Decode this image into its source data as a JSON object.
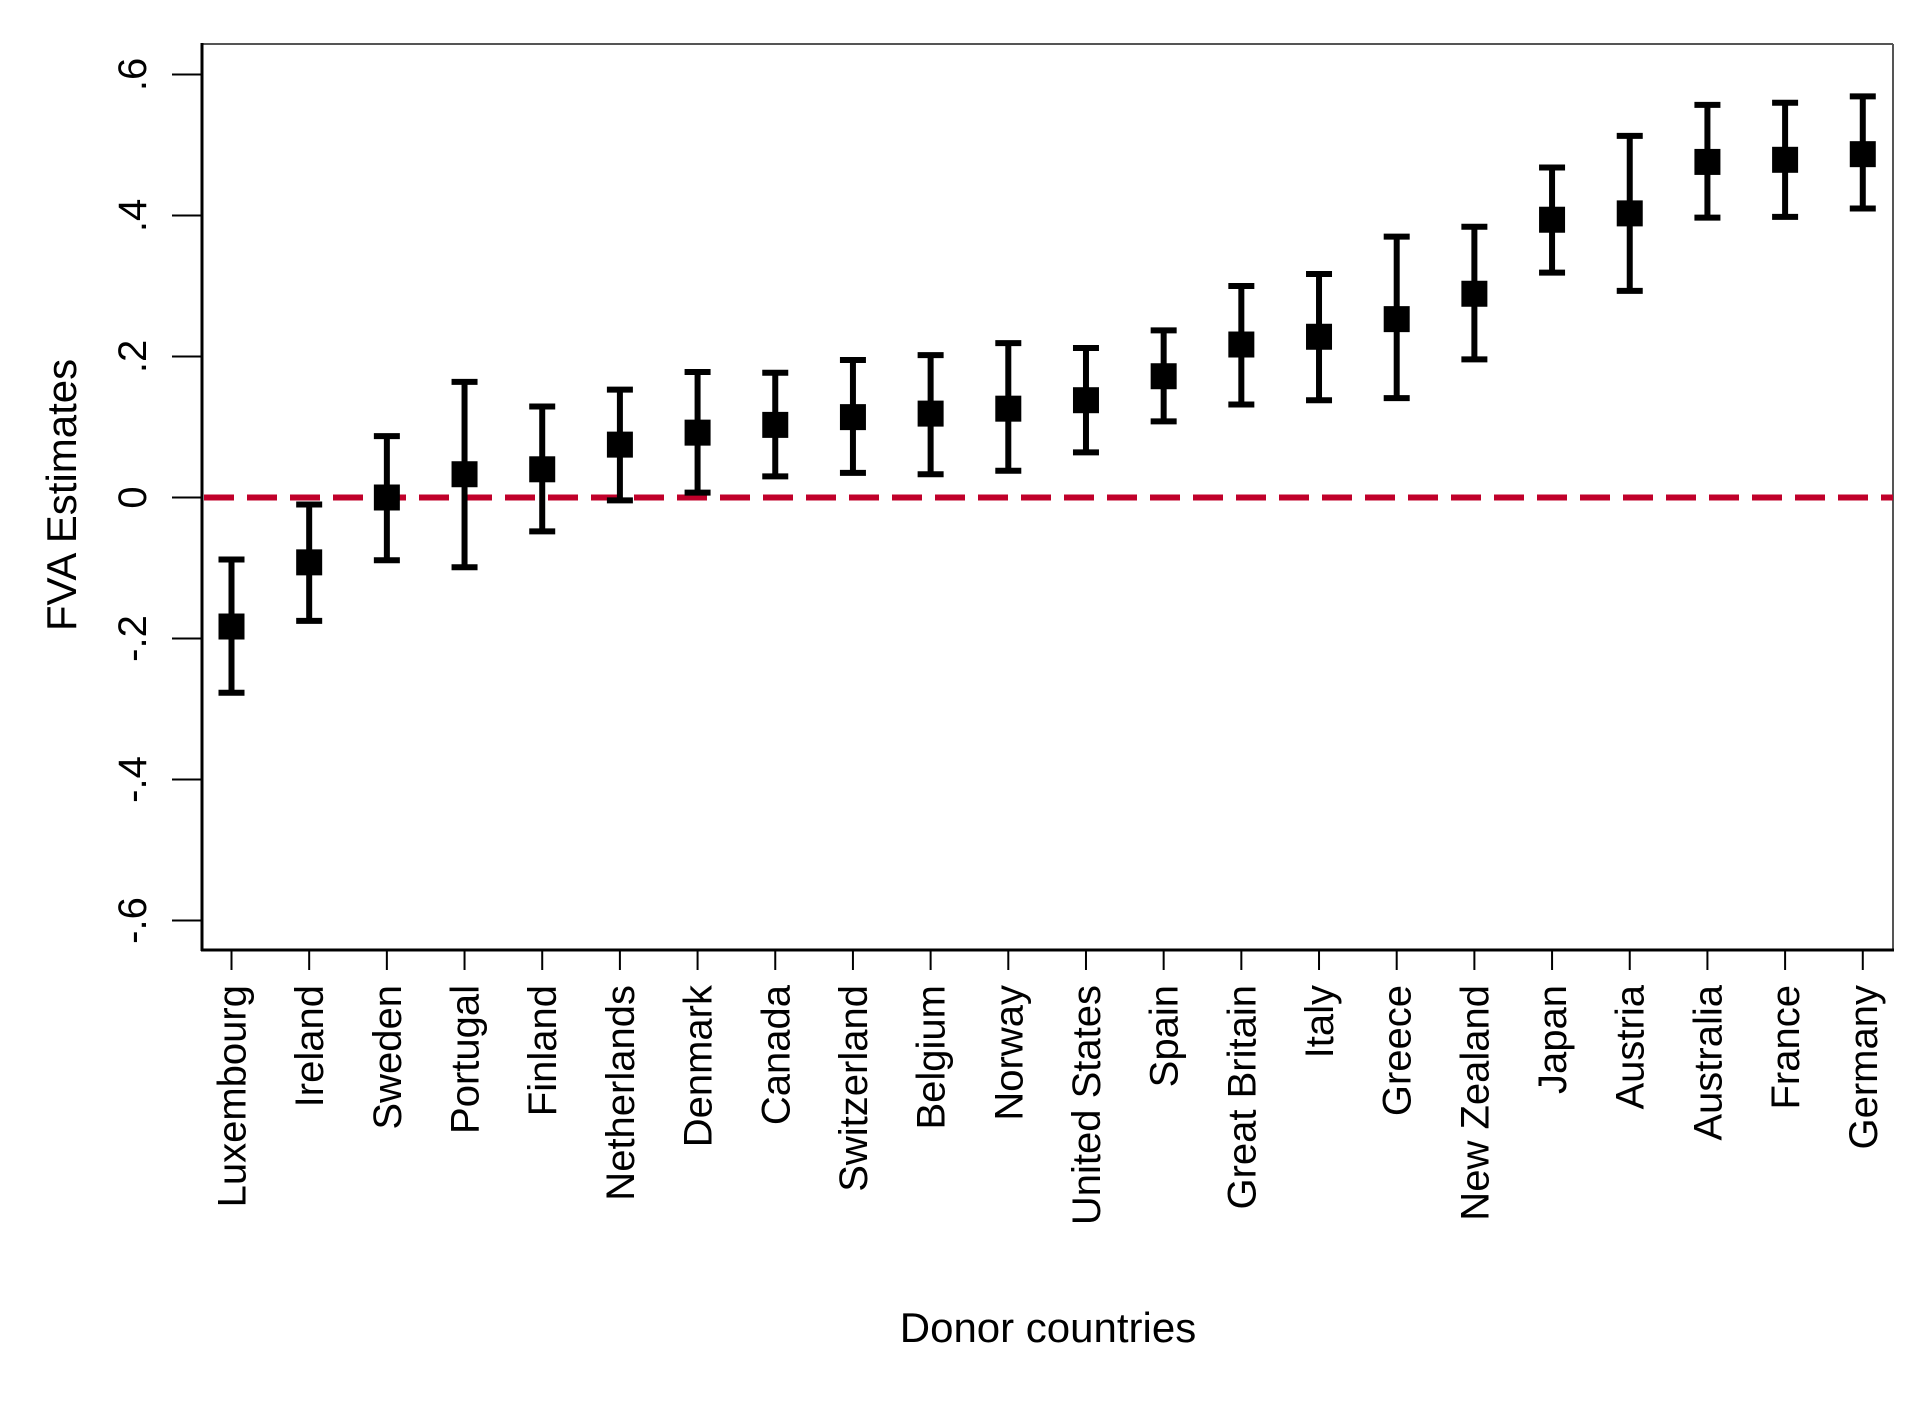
{
  "chart_data": {
    "type": "scatter",
    "subtype": "point-estimate-with-error-bars",
    "title": "",
    "xlabel": "Donor countries",
    "ylabel": "FVA Estimates",
    "ylim": [
      -0.64,
      0.64
    ],
    "yticks": [
      -0.6,
      -0.4,
      -0.2,
      0,
      0.2,
      0.4,
      0.6
    ],
    "ytick_labels": [
      "-.6",
      "-.4",
      "-.2",
      "0",
      ".2",
      ".4",
      ".6"
    ],
    "grid": false,
    "legend": "none",
    "reference_line": {
      "y": 0,
      "style": "dashed",
      "color": "#C0002A"
    },
    "marker_color": "#000000",
    "categories": [
      "Luxembourg",
      "Ireland",
      "Sweden",
      "Portugal",
      "Finland",
      "Netherlands",
      "Denmark",
      "Canada",
      "Switzerland",
      "Belgium",
      "Norway",
      "United States",
      "Spain",
      "Great Britain",
      "Italy",
      "Greece",
      "New Zealand",
      "Japan",
      "Austria",
      "Australia",
      "France",
      "Germany"
    ],
    "series": [
      {
        "name": "FVA estimate",
        "values": [
          -0.183,
          -0.092,
          0.0,
          0.033,
          0.04,
          0.075,
          0.092,
          0.103,
          0.114,
          0.119,
          0.126,
          0.138,
          0.172,
          0.217,
          0.228,
          0.253,
          0.289,
          0.394,
          0.403,
          0.476,
          0.479,
          0.487
        ],
        "lower": [
          -0.277,
          -0.175,
          -0.089,
          -0.099,
          -0.048,
          -0.004,
          0.007,
          0.03,
          0.035,
          0.033,
          0.038,
          0.064,
          0.108,
          0.132,
          0.138,
          0.141,
          0.196,
          0.319,
          0.293,
          0.397,
          0.398,
          0.41
        ],
        "upper": [
          -0.088,
          -0.01,
          0.087,
          0.164,
          0.129,
          0.153,
          0.178,
          0.177,
          0.195,
          0.202,
          0.219,
          0.212,
          0.237,
          0.3,
          0.317,
          0.37,
          0.384,
          0.468,
          0.513,
          0.557,
          0.56,
          0.569
        ]
      }
    ]
  }
}
